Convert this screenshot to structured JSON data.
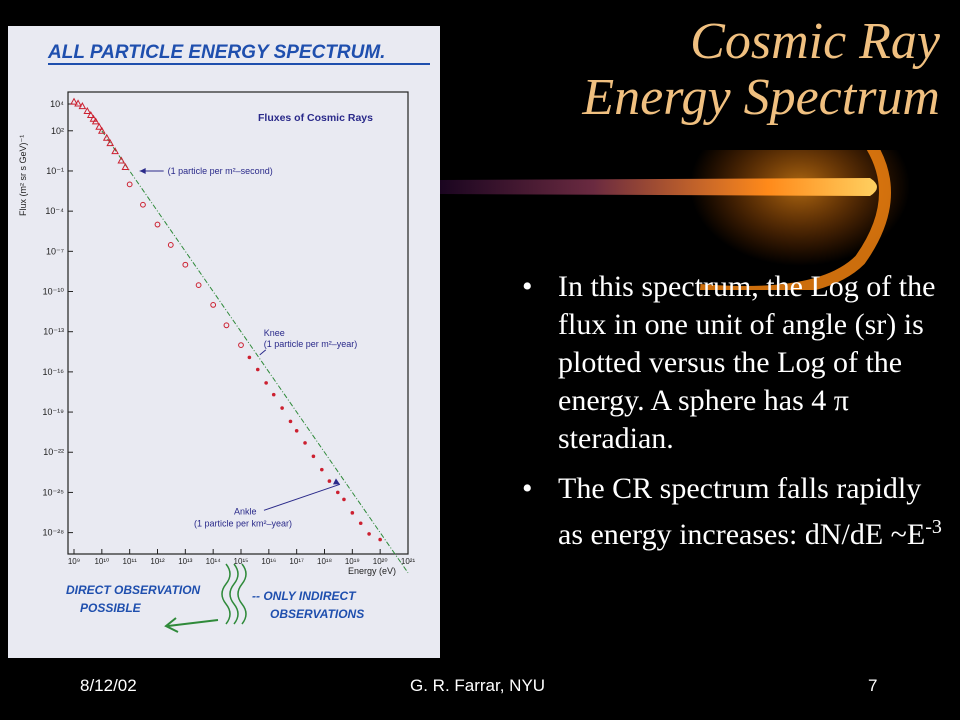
{
  "slide": {
    "title_line1": "Cosmic Ray",
    "title_line2": "Energy Spectrum",
    "bullets": [
      "In this spectrum, the Log of the flux in one unit of angle (sr) is plotted versus the Log of the energy.  A sphere has 4 π steradian.",
      "The CR spectrum falls rapidly as energy increases: dN/dE ~E"
    ],
    "bullet_2_exponent": "-3",
    "footer": {
      "date": "8/12/02",
      "author": "G. R. Farrar, NYU",
      "page": "7"
    },
    "scan": {
      "handwritten_title": "ALL PARTICLE ENERGY SPECTRUM.",
      "handwritten_left_1": "DIRECT OBSERVATION",
      "handwritten_left_2": "POSSIBLE",
      "handwritten_right_1": "-- ONLY INDIRECT",
      "handwritten_right_2": "OBSERVATIONS"
    },
    "colors": {
      "title": "#f0c080",
      "background": "#000000",
      "data_points": "#cc2030",
      "annotation_text": "#2a2a8a",
      "handwriting": "#1f4fae",
      "swoosh": "#ff9a1a"
    }
  },
  "chart_data": {
    "type": "scatter",
    "title": "Fluxes of Cosmic Rays",
    "xlabel": "Energy (eV)",
    "ylabel": "Flux (m² sr s GeV)⁻¹",
    "x_scale": "log",
    "y_scale": "log",
    "xlim": [
      1000000000.0,
      1e+21
    ],
    "ylim": [
      1e-29,
      10000.0
    ],
    "x_ticks": [
      "10⁹",
      "10¹⁰",
      "10¹¹",
      "10¹²",
      "10¹³",
      "10¹⁴",
      "10¹⁵",
      "10¹⁶",
      "10¹⁷",
      "10¹⁸",
      "10¹⁹",
      "10²⁰",
      "10²¹"
    ],
    "y_ticks": [
      "10⁴",
      "10²",
      "10⁻¹",
      "10⁻⁴",
      "10⁻⁷",
      "10⁻¹⁰",
      "10⁻¹³",
      "10⁻¹⁶",
      "10⁻¹⁹",
      "10⁻²²",
      "10⁻²⁵",
      "10⁻²⁸"
    ],
    "reference_line": {
      "style": "dash-dot",
      "slope": -3
    },
    "annotations": [
      {
        "label": "(1 particle per m²–second)",
        "energy": 100000000000.0
      },
      {
        "label": "Knee",
        "label2": "(1 particle per m²–year)",
        "energy": 4000000000000000.0
      },
      {
        "label": "Ankle",
        "label2": "(1 particle per km²–year)",
        "energy": 5e+18
      }
    ],
    "series": [
      {
        "marker": "open-triangle",
        "x": [
          1000000000.0,
          1400000000.0,
          2000000000.0,
          3000000000.0,
          4000000000.0,
          5000000000.0,
          6000000000.0,
          8000000000.0,
          10000000000.0,
          15000000000.0,
          20000000000.0,
          30000000000.0,
          50000000000.0,
          70000000000.0
        ],
        "y": [
          15000.0,
          11000.0,
          7000.0,
          3000.0,
          1500.0,
          800,
          500,
          200,
          100,
          30,
          12,
          3,
          0.6,
          0.2
        ]
      },
      {
        "marker": "open-circle",
        "x": [
          100000000000.0,
          300000000000.0,
          1000000000000.0,
          3000000000000.0,
          10000000000000.0,
          30000000000000.0,
          100000000000000.0,
          300000000000000.0,
          1000000000000000.0
        ],
        "y": [
          0.01,
          0.0003,
          1e-05,
          3e-07,
          1e-08,
          3e-10,
          1e-11,
          3e-13,
          1e-14
        ]
      },
      {
        "marker": "dot",
        "x": [
          2000000000000000.0,
          4000000000000000.0,
          8000000000000000.0,
          1.5e+16,
          3e+16,
          6e+16,
          1e+17,
          2e+17,
          4e+17,
          8e+17,
          1.5e+18,
          3e+18,
          5e+18,
          1e+19,
          2e+19,
          4e+19,
          1e+20
        ],
        "y": [
          1.2e-15,
          1.5e-16,
          1.5e-17,
          2e-18,
          2e-19,
          2e-20,
          4e-21,
          5e-22,
          5e-23,
          5e-24,
          7e-25,
          1e-25,
          3e-26,
          3e-27,
          5e-28,
          8e-29,
          3e-29
        ]
      }
    ]
  }
}
